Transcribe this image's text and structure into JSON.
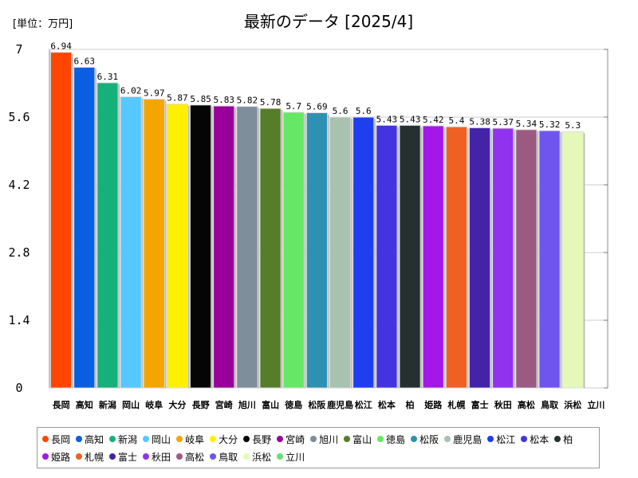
{
  "chart_data": {
    "type": "bar",
    "title": "最新のデータ [2025/4]",
    "unit_label": "[単位：万円]",
    "ylim": [
      0,
      7
    ],
    "yticks": [
      "0",
      "1.4",
      "2.8",
      "4.2",
      "5.6",
      "7"
    ],
    "grid": true,
    "legend_position": "bottom",
    "categories": [
      "長岡",
      "高知",
      "新潟",
      "岡山",
      "岐阜",
      "大分",
      "長野",
      "宮崎",
      "旭川",
      "富山",
      "徳島",
      "松阪",
      "鹿児島",
      "松江",
      "松本",
      "柏",
      "姫路",
      "札幌",
      "富士",
      "秋田",
      "高松",
      "鳥取",
      "浜松",
      "立川"
    ],
    "values": [
      6.94,
      6.63,
      6.31,
      6.02,
      5.97,
      5.87,
      5.85,
      5.83,
      5.82,
      5.78,
      5.7,
      5.69,
      5.6,
      5.6,
      5.43,
      5.43,
      5.42,
      5.4,
      5.38,
      5.37,
      5.34,
      5.32,
      5.3,
      0
    ],
    "value_labels": [
      "6.94",
      "6.63",
      "6.31",
      "6.02",
      "5.97",
      "5.87",
      "5.85",
      "5.83",
      "5.82",
      "5.78",
      "5.7",
      "5.69",
      "5.6",
      "5.6",
      "5.43",
      "5.43",
      "5.42",
      "5.4",
      "5.38",
      "5.37",
      "5.34",
      "5.32",
      "5.3",
      ""
    ],
    "colors": [
      "#ff4500",
      "#0a5fe0",
      "#16b07a",
      "#55c8ff",
      "#f5a500",
      "#ffef00",
      "#050505",
      "#990099",
      "#7e8e9b",
      "#557d2a",
      "#66e866",
      "#2f91b2",
      "#a8c2b0",
      "#1e3ef0",
      "#4333e0",
      "#263030",
      "#a318e6",
      "#ef6122",
      "#4323a8",
      "#9133ee",
      "#9a5a82",
      "#6f55ee",
      "#e4f9b8",
      "#66e070"
    ]
  }
}
